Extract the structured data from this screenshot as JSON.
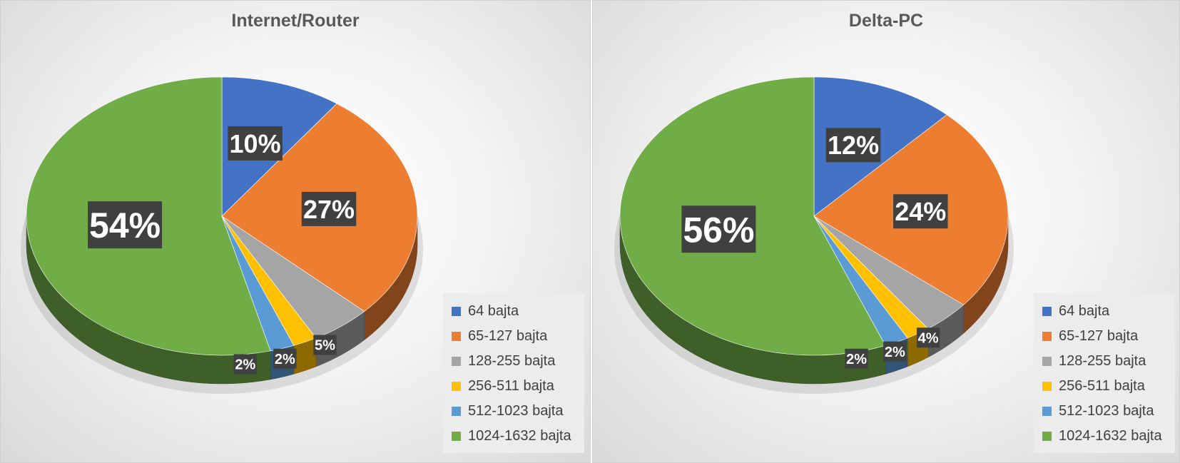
{
  "chart_data": [
    {
      "type": "pie",
      "title": "Internet/Router",
      "categories": [
        "64 bajta",
        "65-127 bajta",
        "128-255 bajta",
        "256-511 bajta",
        "512-1023 bajta",
        "1024-1632 bajta"
      ],
      "values": [
        10,
        27,
        5,
        2,
        2,
        54
      ],
      "data_labels": [
        "10%",
        "27%",
        "5%",
        "2%",
        "2%",
        "54%"
      ],
      "colors": [
        "#4472c4",
        "#ed7d31",
        "#a5a5a5",
        "#ffc000",
        "#5b9bd5",
        "#70ad47"
      ],
      "legend_position": "bottom-right",
      "style": "3d"
    },
    {
      "type": "pie",
      "title": "Delta-PC",
      "categories": [
        "64 bajta",
        "65-127 bajta",
        "128-255 bajta",
        "256-511 bajta",
        "512-1023 bajta",
        "1024-1632 bajta"
      ],
      "values": [
        12,
        24,
        4,
        2,
        2,
        56
      ],
      "data_labels": [
        "12%",
        "24%",
        "4%",
        "2%",
        "2%",
        "56%"
      ],
      "colors": [
        "#4472c4",
        "#ed7d31",
        "#a5a5a5",
        "#ffc000",
        "#5b9bd5",
        "#70ad47"
      ],
      "legend_position": "bottom-right",
      "style": "3d"
    }
  ]
}
